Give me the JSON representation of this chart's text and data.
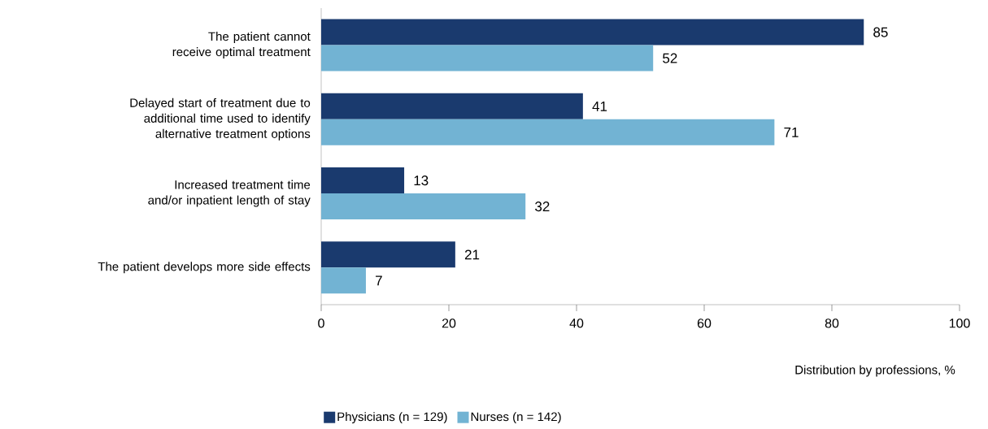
{
  "chart_data": {
    "type": "bar",
    "orientation": "horizontal",
    "xlabel": "Distribution by professions, %",
    "categories": [
      "The patient cannot receive optimal treatment",
      "Delayed start of treatment due to additional time used to identify alternative treatment options",
      "Increased treatment time and/or inpatient length of stay",
      "The patient develops more side effects"
    ],
    "series": [
      {
        "name": "Physicians (n = 129)",
        "color": "#1a3a6e",
        "values": [
          85,
          41,
          13,
          21
        ]
      },
      {
        "name": "Nurses (n = 142)",
        "color": "#72b3d3",
        "values": [
          52,
          71,
          32,
          7
        ]
      }
    ],
    "xlim": [
      0,
      100
    ],
    "xticks": [
      0,
      20,
      40,
      60,
      80,
      100
    ],
    "data_labels": true,
    "legend": "bottom",
    "grid": false
  }
}
